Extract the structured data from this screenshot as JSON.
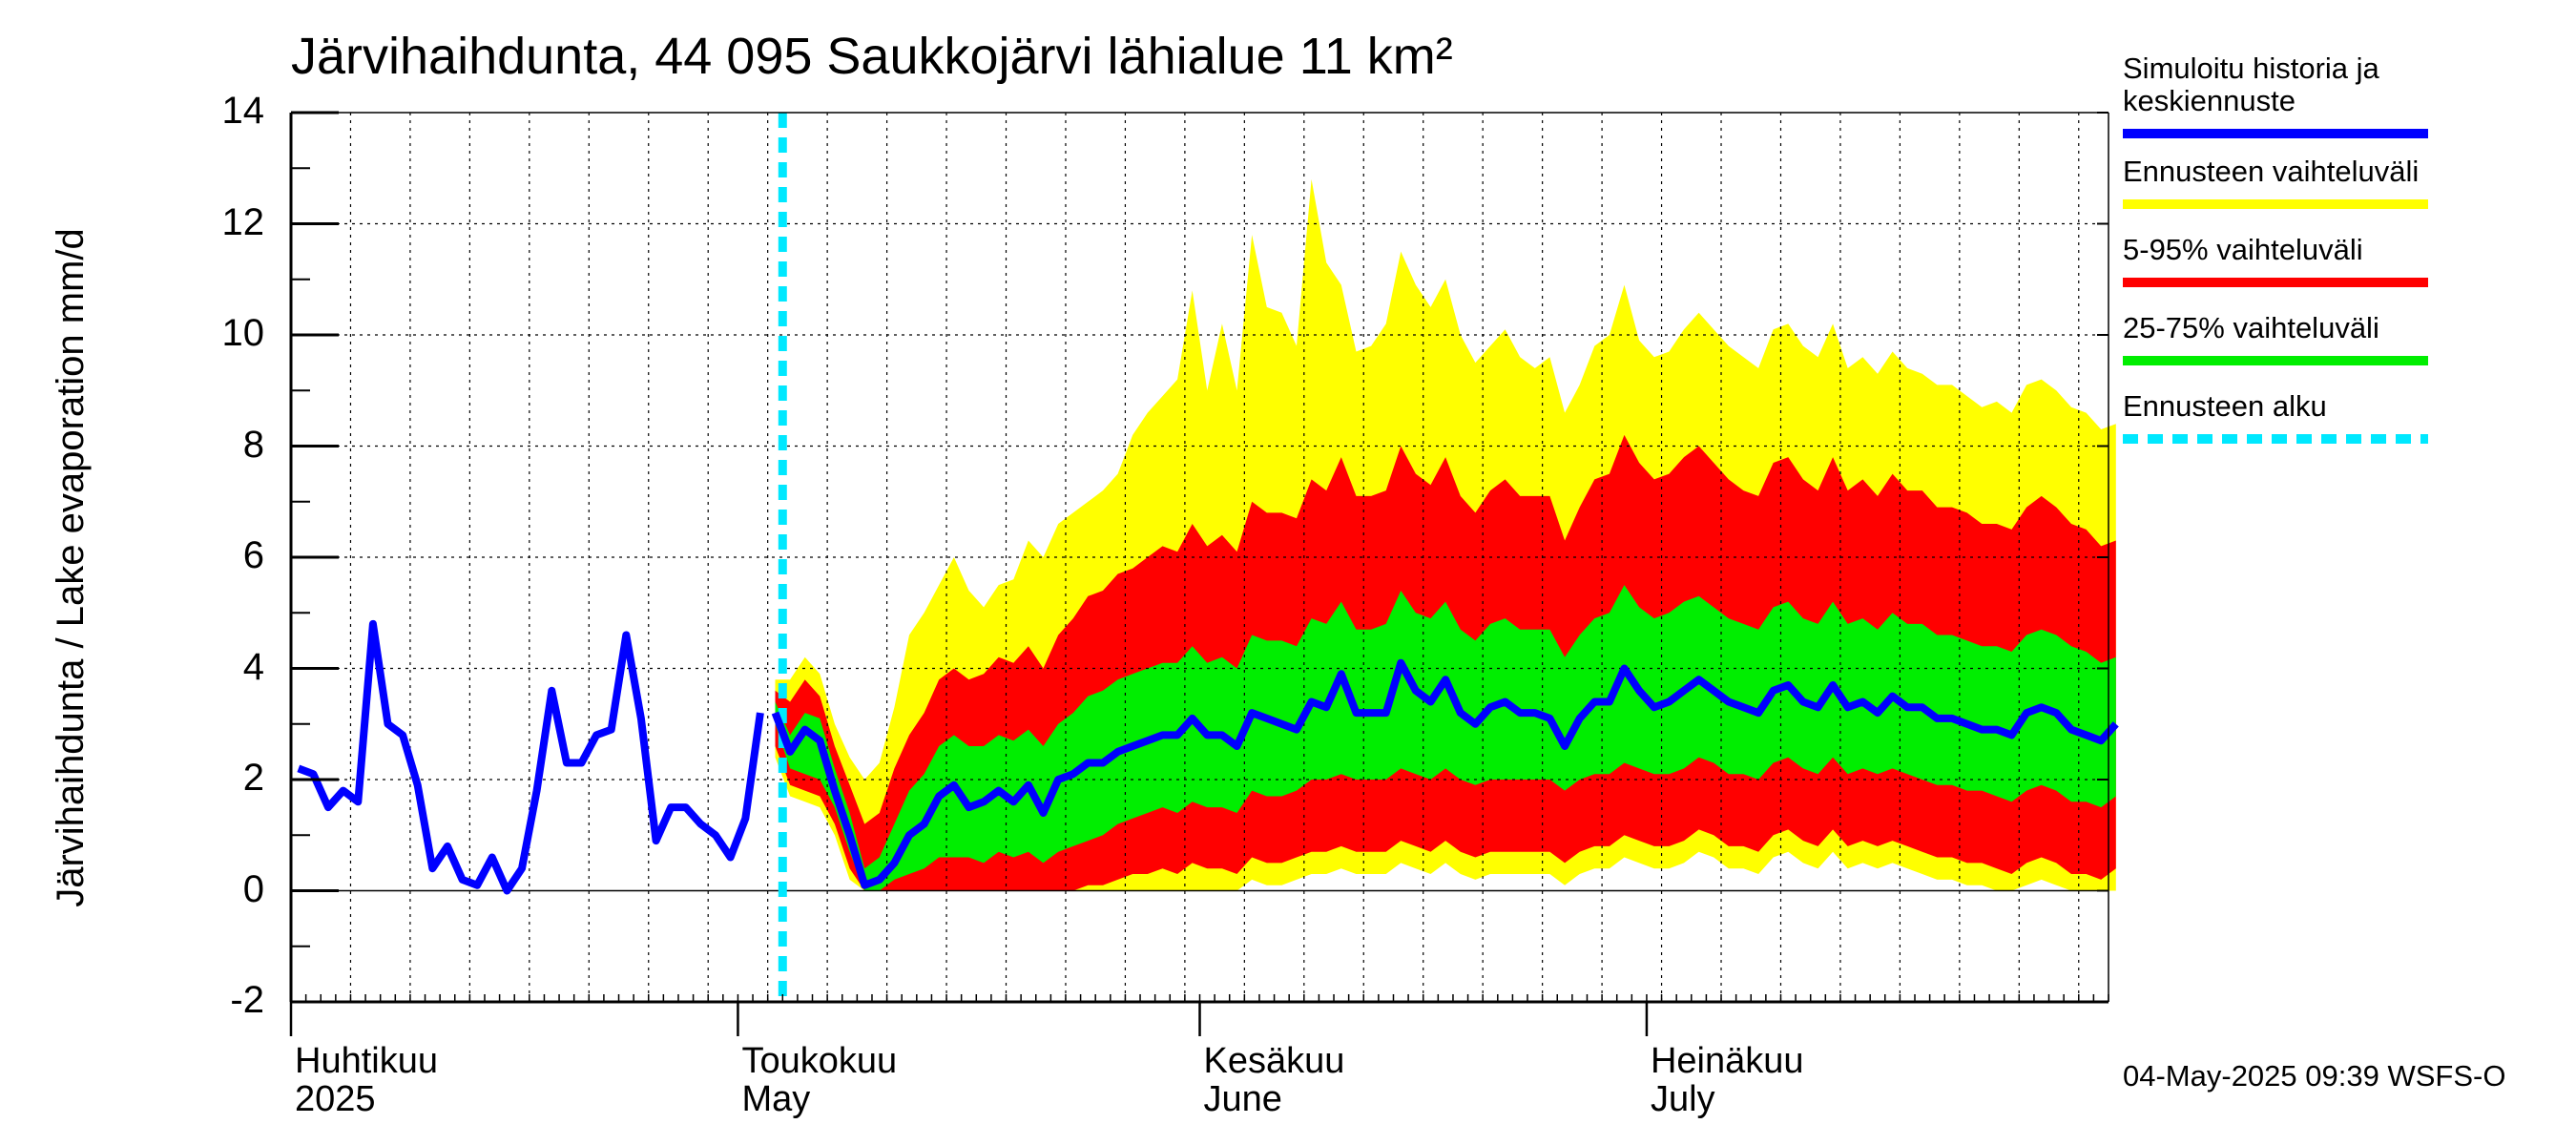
{
  "title": "Järvihaihdunta, 44 095 Saukkojärvi lähialue 11 km²",
  "footer": "04-May-2025 09:39 WSFS-O",
  "legend": [
    {
      "label_line1": "Simuloitu historia ja",
      "label_line2": "keskiennuste",
      "color": "#0000ff",
      "style": "solid"
    },
    {
      "label_line1": "Ennusteen vaihteluväli",
      "label_line2": "",
      "color": "#ffff00",
      "style": "solid"
    },
    {
      "label_line1": "5-95% vaihteluväli",
      "label_line2": "",
      "color": "#ff0000",
      "style": "solid"
    },
    {
      "label_line1": "25-75% vaihteluväli",
      "label_line2": "",
      "color": "#00ee00",
      "style": "solid"
    },
    {
      "label_line1": "Ennusteen alku",
      "label_line2": "",
      "color": "#00e8ff",
      "style": "dashed"
    }
  ],
  "chart_data": {
    "type": "area",
    "title": "Järvihaihdunta, 44 095 Saukkojärvi lähialue 11 km²",
    "ylabel": "Järvihaihdunta / Lake evaporation   mm/d",
    "xlabel": "",
    "ylim": [
      -2,
      14
    ],
    "yticks": [
      -2,
      0,
      2,
      4,
      6,
      8,
      10,
      12,
      14
    ],
    "x_start": "2025-04-01",
    "x_end": "2025-07-31",
    "grid": true,
    "legend_position": "right",
    "month_labels": [
      {
        "date": "2025-04-01",
        "line1": "Huhtikuu",
        "line2": "2025"
      },
      {
        "date": "2025-05-01",
        "line1": "Toukokuu",
        "line2": "May"
      },
      {
        "date": "2025-06-01",
        "line1": "Kesäkuu",
        "line2": "June"
      },
      {
        "date": "2025-07-01",
        "line1": "Heinäkuu",
        "line2": "July"
      }
    ],
    "forecast_start": "2025-05-04",
    "history": {
      "name": "Simuloitu historia ja keskiennuste",
      "start": "2025-04-01",
      "values": [
        2.2,
        2.1,
        1.5,
        1.8,
        1.6,
        4.8,
        3.0,
        2.8,
        1.9,
        0.4,
        0.8,
        0.2,
        0.1,
        0.6,
        0.0,
        0.4,
        1.8,
        3.6,
        2.3,
        2.3,
        2.8,
        2.9,
        4.6,
        3.1,
        0.9,
        1.5,
        1.5,
        1.2,
        1.0,
        0.6,
        1.3,
        3.2
      ]
    },
    "forecast": {
      "start": "2025-05-03",
      "median": [
        3.2,
        2.5,
        2.9,
        2.7,
        1.8,
        1.0,
        0.1,
        0.2,
        0.5,
        1.0,
        1.2,
        1.7,
        1.9,
        1.5,
        1.6,
        1.8,
        1.6,
        1.9,
        1.4,
        2.0,
        2.1,
        2.3,
        2.3,
        2.5,
        2.6,
        2.7,
        2.8,
        2.8,
        3.1,
        2.8,
        2.8,
        2.6,
        3.2,
        3.1,
        3.0,
        2.9,
        3.4,
        3.3,
        3.9,
        3.2,
        3.2,
        3.2,
        4.1,
        3.6,
        3.4,
        3.8,
        3.2,
        3.0,
        3.3,
        3.4,
        3.2,
        3.2,
        3.1,
        2.6,
        3.1,
        3.4,
        3.4,
        4.0,
        3.6,
        3.3,
        3.4,
        3.6,
        3.8,
        3.6,
        3.4,
        3.3,
        3.2,
        3.6,
        3.7,
        3.4,
        3.3,
        3.7,
        3.3,
        3.4,
        3.2,
        3.5,
        3.3,
        3.3,
        3.1,
        3.1,
        3.0,
        2.9,
        2.9,
        2.8,
        3.2,
        3.3,
        3.2,
        2.9,
        2.8,
        2.7,
        3.0
      ],
      "p25": [
        3.0,
        2.2,
        2.1,
        2.0,
        1.5,
        0.7,
        0.0,
        0.0,
        0.2,
        0.3,
        0.4,
        0.6,
        0.6,
        0.6,
        0.5,
        0.7,
        0.6,
        0.7,
        0.5,
        0.7,
        0.8,
        0.9,
        1.0,
        1.2,
        1.3,
        1.4,
        1.5,
        1.4,
        1.6,
        1.5,
        1.5,
        1.4,
        1.8,
        1.7,
        1.7,
        1.8,
        2.0,
        2.0,
        2.1,
        2.0,
        2.0,
        2.0,
        2.2,
        2.1,
        2.0,
        2.2,
        2.0,
        1.9,
        2.0,
        2.0,
        2.0,
        2.0,
        2.0,
        1.8,
        2.0,
        2.1,
        2.1,
        2.3,
        2.2,
        2.1,
        2.1,
        2.2,
        2.4,
        2.3,
        2.1,
        2.1,
        2.0,
        2.3,
        2.4,
        2.2,
        2.1,
        2.4,
        2.1,
        2.2,
        2.1,
        2.2,
        2.1,
        2.0,
        1.9,
        1.9,
        1.8,
        1.8,
        1.7,
        1.6,
        1.8,
        1.9,
        1.8,
        1.6,
        1.6,
        1.5,
        1.7
      ],
      "p75": [
        3.4,
        2.8,
        3.2,
        3.1,
        2.2,
        1.4,
        0.4,
        0.6,
        1.2,
        1.8,
        2.1,
        2.6,
        2.8,
        2.6,
        2.6,
        2.8,
        2.7,
        2.9,
        2.6,
        3.0,
        3.2,
        3.5,
        3.6,
        3.8,
        3.9,
        4.0,
        4.1,
        4.1,
        4.4,
        4.1,
        4.2,
        4.0,
        4.6,
        4.5,
        4.5,
        4.4,
        4.9,
        4.8,
        5.2,
        4.7,
        4.7,
        4.8,
        5.4,
        5.0,
        4.9,
        5.2,
        4.7,
        4.5,
        4.8,
        4.9,
        4.7,
        4.7,
        4.7,
        4.2,
        4.6,
        4.9,
        5.0,
        5.5,
        5.1,
        4.9,
        5.0,
        5.2,
        5.3,
        5.1,
        4.9,
        4.8,
        4.7,
        5.1,
        5.2,
        4.9,
        4.8,
        5.2,
        4.8,
        4.9,
        4.7,
        5.0,
        4.8,
        4.8,
        4.6,
        4.6,
        4.5,
        4.4,
        4.4,
        4.3,
        4.6,
        4.7,
        4.6,
        4.4,
        4.3,
        4.1,
        4.2
      ],
      "p5": [
        2.6,
        1.9,
        1.8,
        1.7,
        1.2,
        0.4,
        0.0,
        0.0,
        0.0,
        0.0,
        0.0,
        0.0,
        0.0,
        0.0,
        0.0,
        0.0,
        0.0,
        0.0,
        0.0,
        0.0,
        0.0,
        0.1,
        0.1,
        0.2,
        0.3,
        0.3,
        0.4,
        0.3,
        0.5,
        0.4,
        0.4,
        0.3,
        0.6,
        0.5,
        0.5,
        0.6,
        0.7,
        0.7,
        0.8,
        0.7,
        0.7,
        0.7,
        0.9,
        0.8,
        0.7,
        0.9,
        0.7,
        0.6,
        0.7,
        0.7,
        0.7,
        0.7,
        0.7,
        0.5,
        0.7,
        0.8,
        0.8,
        1.0,
        0.9,
        0.8,
        0.8,
        0.9,
        1.1,
        1.0,
        0.8,
        0.8,
        0.7,
        1.0,
        1.1,
        0.9,
        0.8,
        1.1,
        0.8,
        0.9,
        0.8,
        0.9,
        0.8,
        0.7,
        0.6,
        0.6,
        0.5,
        0.5,
        0.4,
        0.3,
        0.5,
        0.6,
        0.5,
        0.3,
        0.3,
        0.2,
        0.4
      ],
      "p95": [
        3.6,
        3.4,
        3.8,
        3.5,
        2.6,
        1.9,
        1.2,
        1.4,
        2.2,
        2.8,
        3.2,
        3.8,
        4.0,
        3.8,
        3.9,
        4.2,
        4.1,
        4.4,
        4.0,
        4.6,
        4.9,
        5.3,
        5.4,
        5.7,
        5.8,
        6.0,
        6.2,
        6.1,
        6.6,
        6.2,
        6.4,
        6.1,
        7.0,
        6.8,
        6.8,
        6.7,
        7.4,
        7.2,
        7.8,
        7.1,
        7.1,
        7.2,
        8.0,
        7.5,
        7.3,
        7.8,
        7.1,
        6.8,
        7.2,
        7.4,
        7.1,
        7.1,
        7.1,
        6.3,
        6.9,
        7.4,
        7.5,
        8.2,
        7.7,
        7.4,
        7.5,
        7.8,
        8.0,
        7.7,
        7.4,
        7.2,
        7.1,
        7.7,
        7.8,
        7.4,
        7.2,
        7.8,
        7.2,
        7.4,
        7.1,
        7.5,
        7.2,
        7.2,
        6.9,
        6.9,
        6.8,
        6.6,
        6.6,
        6.5,
        6.9,
        7.1,
        6.9,
        6.6,
        6.5,
        6.2,
        6.3
      ],
      "min": [
        2.4,
        1.7,
        1.6,
        1.5,
        1.0,
        0.2,
        0.0,
        0.0,
        0.0,
        0.0,
        0.0,
        0.0,
        0.0,
        0.0,
        0.0,
        0.0,
        0.0,
        0.0,
        0.0,
        0.0,
        0.0,
        0.0,
        0.0,
        0.0,
        0.0,
        0.0,
        0.0,
        0.0,
        0.0,
        0.0,
        0.0,
        0.0,
        0.2,
        0.1,
        0.1,
        0.2,
        0.3,
        0.3,
        0.4,
        0.3,
        0.3,
        0.3,
        0.5,
        0.4,
        0.3,
        0.5,
        0.3,
        0.2,
        0.3,
        0.3,
        0.3,
        0.3,
        0.3,
        0.1,
        0.3,
        0.4,
        0.4,
        0.6,
        0.5,
        0.4,
        0.4,
        0.5,
        0.7,
        0.6,
        0.4,
        0.4,
        0.3,
        0.6,
        0.7,
        0.5,
        0.4,
        0.7,
        0.4,
        0.5,
        0.4,
        0.5,
        0.4,
        0.3,
        0.2,
        0.2,
        0.1,
        0.1,
        0.0,
        0.0,
        0.1,
        0.2,
        0.1,
        0.0,
        0.0,
        0.0,
        0.0
      ],
      "max": [
        3.8,
        3.8,
        4.2,
        3.9,
        3.0,
        2.4,
        2.0,
        2.3,
        3.3,
        4.6,
        5.0,
        5.5,
        6.0,
        5.4,
        5.1,
        5.5,
        5.6,
        6.3,
        6.0,
        6.6,
        6.8,
        7.0,
        7.2,
        7.5,
        8.2,
        8.6,
        8.9,
        9.2,
        10.8,
        9.0,
        10.2,
        9.0,
        11.8,
        10.5,
        10.4,
        9.8,
        12.8,
        11.3,
        10.9,
        9.7,
        9.8,
        10.2,
        11.5,
        10.9,
        10.5,
        11.0,
        10.0,
        9.5,
        9.8,
        10.1,
        9.6,
        9.4,
        9.6,
        8.6,
        9.1,
        9.8,
        10.0,
        10.9,
        9.9,
        9.6,
        9.7,
        10.1,
        10.4,
        10.1,
        9.8,
        9.6,
        9.4,
        10.1,
        10.2,
        9.8,
        9.6,
        10.2,
        9.4,
        9.6,
        9.3,
        9.7,
        9.4,
        9.3,
        9.1,
        9.1,
        8.9,
        8.7,
        8.8,
        8.6,
        9.1,
        9.2,
        9.0,
        8.7,
        8.6,
        8.3,
        8.4
      ]
    }
  }
}
